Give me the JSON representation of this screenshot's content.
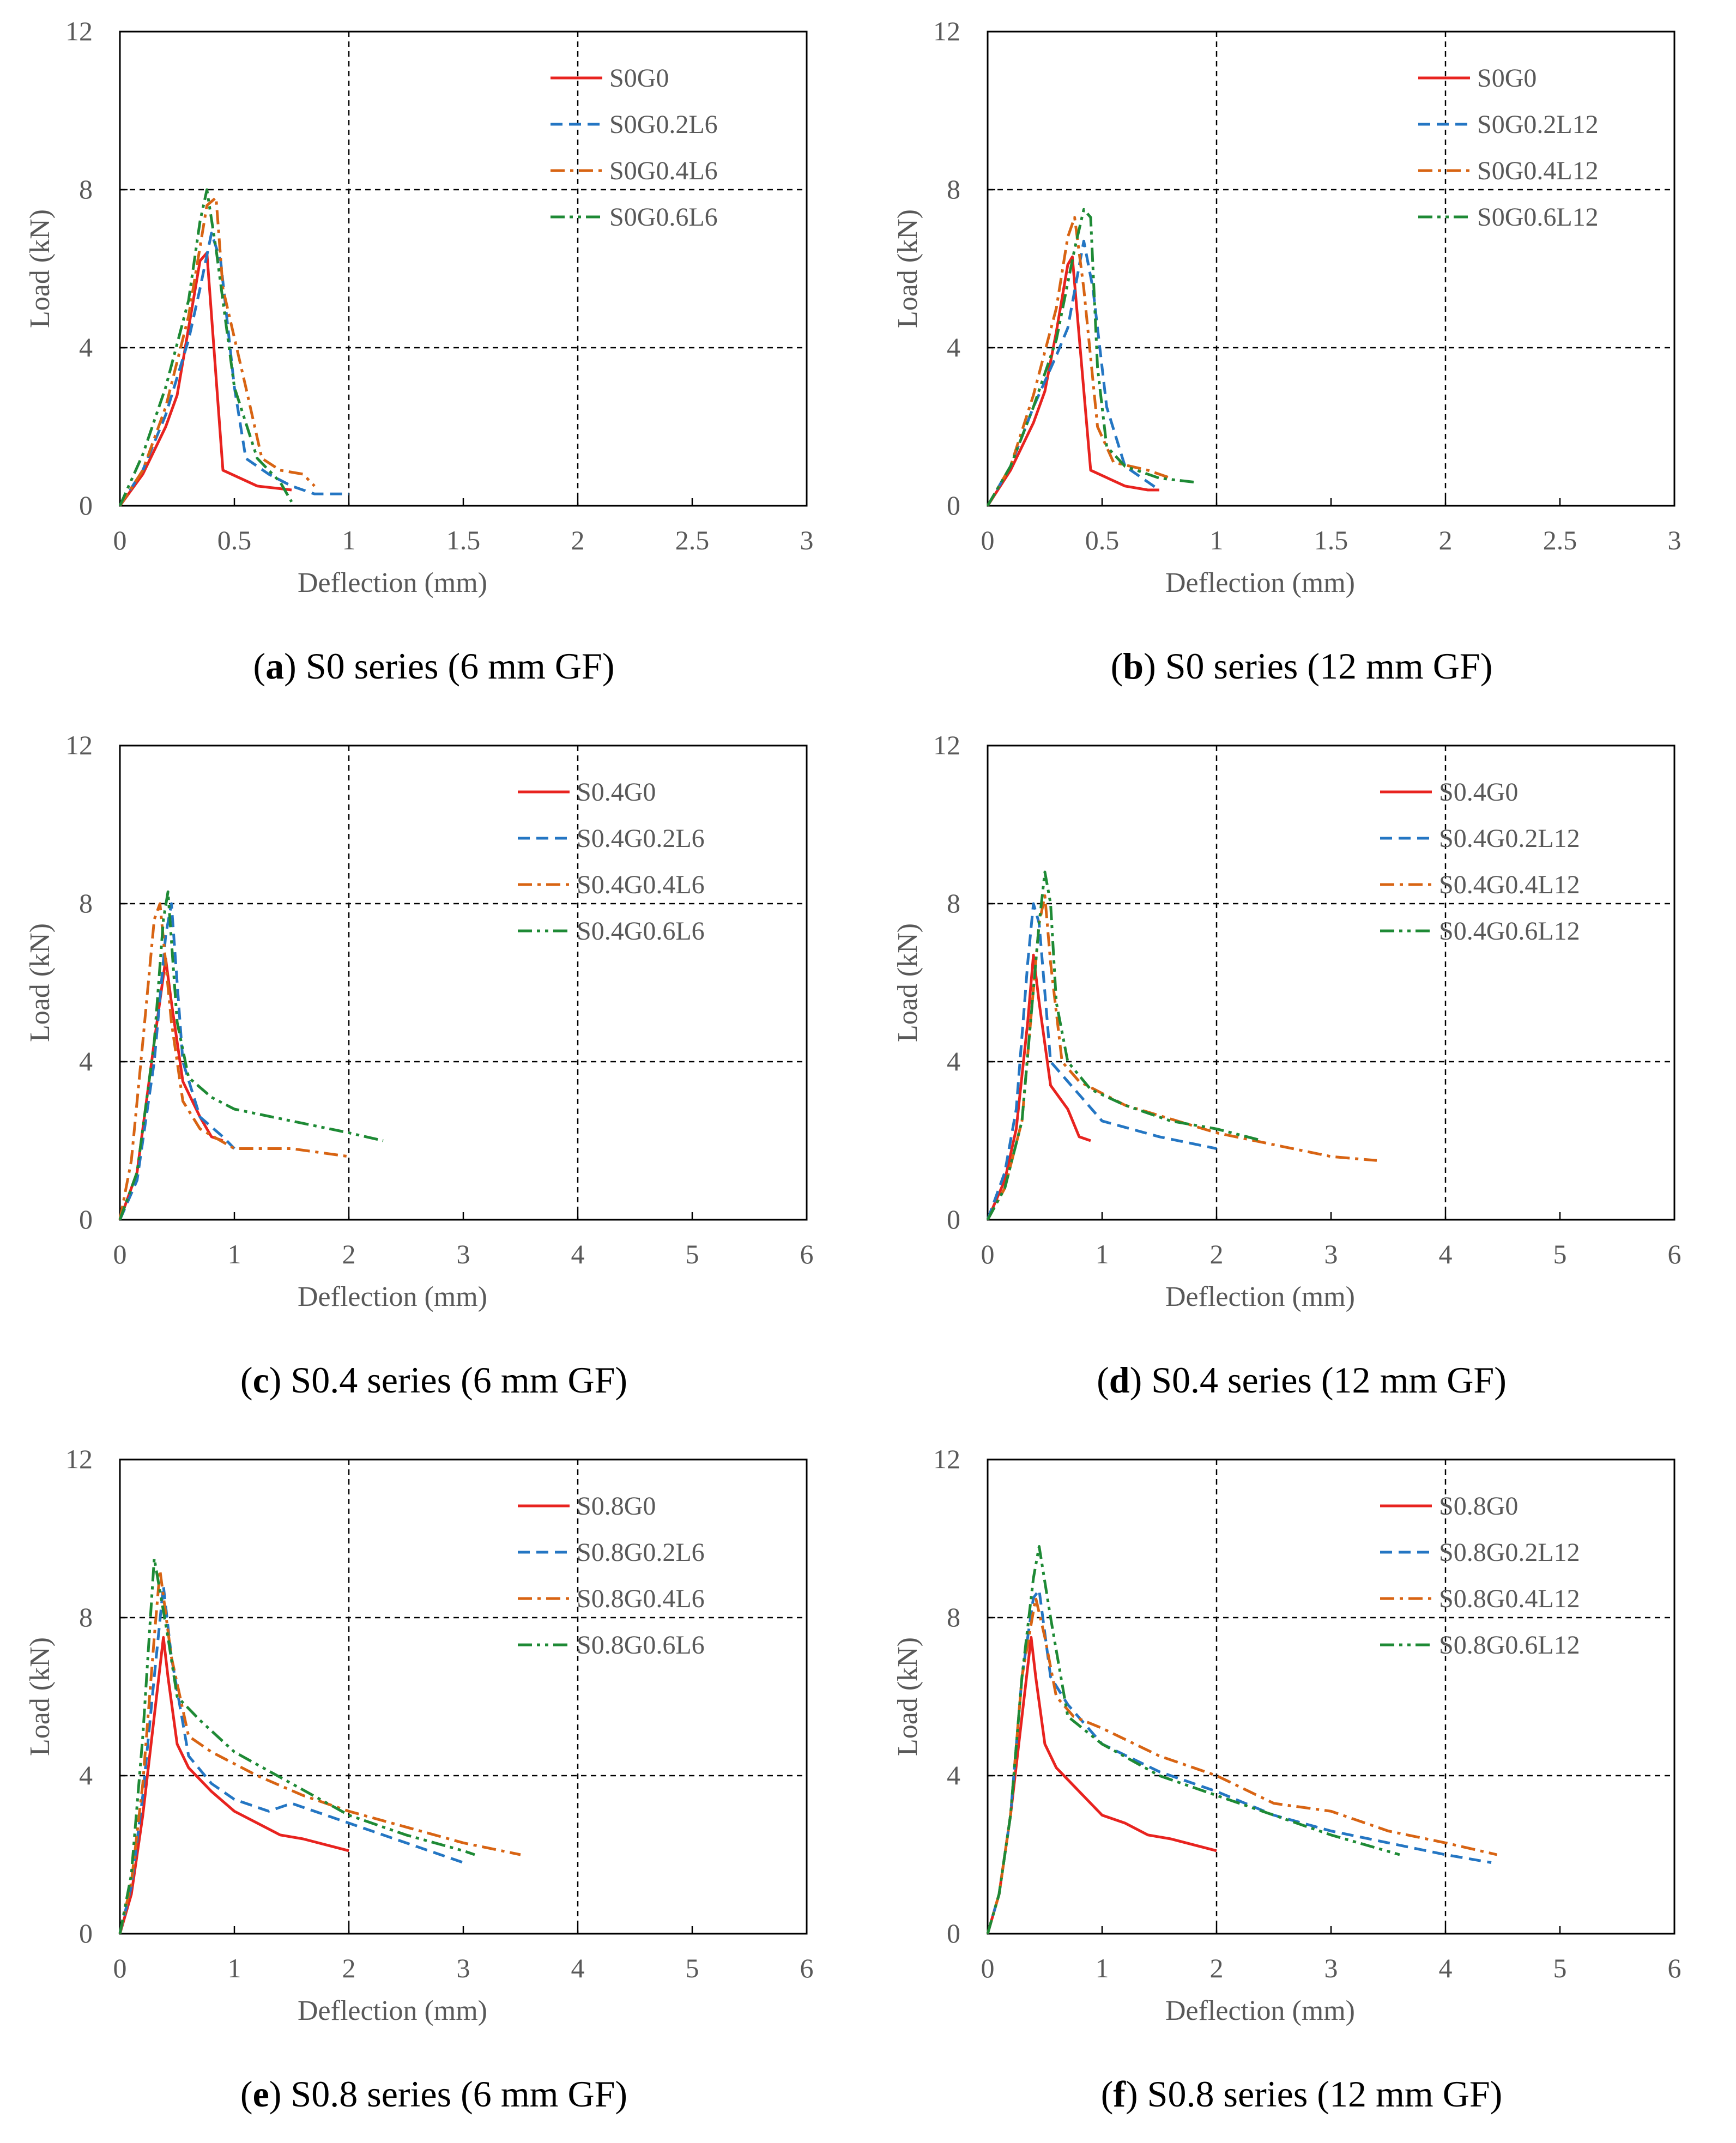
{
  "colors": {
    "red": "#e8231f",
    "blue": "#2476c3",
    "orange": "#d86413",
    "green": "#1e8a35",
    "grid": "#000000",
    "text": "#595959"
  },
  "chart_data": [
    {
      "type": "line",
      "letter": "a",
      "caption": " S0 series (6 mm GF)",
      "xlabel": "Deflection (mm)",
      "ylabel": "Load (kN)",
      "xlim": [
        0,
        3
      ],
      "ylim": [
        0,
        12
      ],
      "xticks": [
        "0",
        "0.5",
        "1",
        "1.5",
        "2",
        "2.5",
        "3"
      ],
      "yticks": [
        "0",
        "4",
        "8",
        "12"
      ],
      "legend_position": "top-right",
      "series": [
        {
          "name": "S0G0",
          "color": "red",
          "dash": "solid",
          "x": [
            0,
            0.1,
            0.2,
            0.25,
            0.3,
            0.35,
            0.38,
            0.45,
            0.6,
            0.75
          ],
          "y": [
            0,
            0.8,
            2.0,
            2.8,
            4.5,
            6.2,
            6.4,
            0.9,
            0.5,
            0.4
          ]
        },
        {
          "name": "S0G0.2L6",
          "color": "blue",
          "dash": "dash",
          "x": [
            0,
            0.1,
            0.2,
            0.3,
            0.35,
            0.4,
            0.44,
            0.5,
            0.55,
            0.65,
            0.75,
            0.85,
            1.0
          ],
          "y": [
            0,
            0.9,
            2.3,
            4.2,
            5.5,
            6.9,
            6.2,
            3.0,
            1.2,
            0.8,
            0.5,
            0.3,
            0.3
          ]
        },
        {
          "name": "S0G0.4L6",
          "color": "orange",
          "dash": "dashdot",
          "x": [
            0,
            0.1,
            0.2,
            0.3,
            0.38,
            0.42,
            0.45,
            0.55,
            0.62,
            0.7,
            0.8,
            0.85
          ],
          "y": [
            0,
            0.9,
            2.5,
            4.8,
            7.6,
            7.8,
            5.5,
            3.0,
            1.2,
            0.9,
            0.8,
            0.5
          ]
        },
        {
          "name": "S0G0.6L6",
          "color": "green",
          "dash": "dashdotdot",
          "x": [
            0,
            0.1,
            0.2,
            0.3,
            0.35,
            0.38,
            0.42,
            0.5,
            0.6,
            0.7,
            0.75
          ],
          "y": [
            0,
            1.3,
            3.0,
            5.2,
            7.2,
            8.0,
            6.5,
            3.0,
            1.2,
            0.6,
            0.1
          ]
        }
      ]
    },
    {
      "type": "line",
      "letter": "b",
      "caption": " S0 series (12 mm GF)",
      "xlabel": "Deflection (mm)",
      "ylabel": "Load (kN)",
      "xlim": [
        0,
        3
      ],
      "ylim": [
        0,
        12
      ],
      "xticks": [
        "0",
        "0.5",
        "1",
        "1.5",
        "2",
        "2.5",
        "3"
      ],
      "yticks": [
        "0",
        "4",
        "8",
        "12"
      ],
      "legend_position": "top-right",
      "series": [
        {
          "name": "S0G0",
          "color": "red",
          "dash": "solid",
          "x": [
            0,
            0.1,
            0.2,
            0.25,
            0.3,
            0.35,
            0.37,
            0.45,
            0.6,
            0.7,
            0.75
          ],
          "y": [
            0,
            0.9,
            2.1,
            2.9,
            4.4,
            6.1,
            6.3,
            0.9,
            0.5,
            0.4,
            0.4
          ]
        },
        {
          "name": "S0G0.2L12",
          "color": "blue",
          "dash": "dash",
          "x": [
            0,
            0.1,
            0.2,
            0.3,
            0.35,
            0.42,
            0.46,
            0.52,
            0.6,
            0.7,
            0.75
          ],
          "y": [
            0,
            1.0,
            2.5,
            3.8,
            4.5,
            6.7,
            5.5,
            2.5,
            1.0,
            0.6,
            0.4
          ]
        },
        {
          "name": "S0G0.4L12",
          "color": "orange",
          "dash": "dashdot",
          "x": [
            0,
            0.1,
            0.2,
            0.3,
            0.35,
            0.38,
            0.42,
            0.48,
            0.55,
            0.7,
            0.8
          ],
          "y": [
            0,
            1.0,
            2.8,
            5.0,
            6.8,
            7.3,
            5.5,
            2.0,
            1.1,
            0.9,
            0.7
          ]
        },
        {
          "name": "S0G0.6L12",
          "color": "green",
          "dash": "dashdotdot",
          "x": [
            0,
            0.1,
            0.2,
            0.3,
            0.38,
            0.42,
            0.45,
            0.48,
            0.52,
            0.6,
            0.75,
            0.9
          ],
          "y": [
            0,
            1.0,
            2.5,
            4.2,
            6.5,
            7.5,
            7.3,
            3.5,
            1.5,
            1.0,
            0.7,
            0.6
          ]
        }
      ]
    },
    {
      "type": "line",
      "letter": "c",
      "caption": " S0.4 series (6 mm GF)",
      "xlabel": "Deflection (mm)",
      "ylabel": "Load (kN)",
      "xlim": [
        0,
        6
      ],
      "ylim": [
        0,
        12
      ],
      "xticks": [
        "0",
        "1",
        "2",
        "3",
        "4",
        "5",
        "6"
      ],
      "yticks": [
        "0",
        "4",
        "8",
        "12"
      ],
      "legend_position": "top-right",
      "series": [
        {
          "name": "S0.4G0",
          "color": "red",
          "dash": "solid",
          "x": [
            0,
            0.15,
            0.3,
            0.4,
            0.45,
            0.55,
            0.7,
            0.8,
            0.9
          ],
          "y": [
            0,
            1.2,
            4.5,
            6.6,
            5.5,
            3.5,
            2.6,
            2.1,
            2.0
          ]
        },
        {
          "name": "S0.4G0.2L6",
          "color": "blue",
          "dash": "dash",
          "x": [
            0,
            0.15,
            0.3,
            0.4,
            0.45,
            0.55,
            0.7,
            0.9,
            1.0
          ],
          "y": [
            0,
            1.0,
            4.0,
            7.2,
            8.0,
            4.0,
            2.6,
            2.1,
            1.8
          ]
        },
        {
          "name": "S0.4G0.4L6",
          "color": "orange",
          "dash": "dashdot",
          "x": [
            0,
            0.1,
            0.2,
            0.3,
            0.35,
            0.45,
            0.55,
            0.7,
            1.0,
            1.5,
            2.0
          ],
          "y": [
            0,
            1.5,
            4.5,
            7.6,
            8.0,
            5.0,
            3.0,
            2.3,
            1.8,
            1.8,
            1.6
          ]
        },
        {
          "name": "S0.4G0.6L6",
          "color": "green",
          "dash": "dashdotdot",
          "x": [
            0,
            0.15,
            0.3,
            0.38,
            0.42,
            0.5,
            0.6,
            0.8,
            1.0,
            1.5,
            2.0,
            2.3
          ],
          "y": [
            0,
            1.2,
            4.5,
            7.6,
            8.3,
            5.0,
            3.6,
            3.1,
            2.8,
            2.5,
            2.2,
            2.0
          ]
        }
      ]
    },
    {
      "type": "line",
      "letter": "d",
      "caption": " S0.4 series (12 mm GF)",
      "xlabel": "Deflection (mm)",
      "ylabel": "Load (kN)",
      "xlim": [
        0,
        6
      ],
      "ylim": [
        0,
        12
      ],
      "xticks": [
        "0",
        "1",
        "2",
        "3",
        "4",
        "5",
        "6"
      ],
      "yticks": [
        "0",
        "4",
        "8",
        "12"
      ],
      "legend_position": "top-right",
      "series": [
        {
          "name": "S0.4G0",
          "color": "red",
          "dash": "solid",
          "x": [
            0,
            0.15,
            0.25,
            0.35,
            0.4,
            0.45,
            0.55,
            0.7,
            0.8,
            0.9
          ],
          "y": [
            0,
            1.0,
            2.3,
            5.0,
            6.7,
            5.5,
            3.4,
            2.8,
            2.1,
            2.0
          ]
        },
        {
          "name": "S0.4G0.2L12",
          "color": "blue",
          "dash": "dash",
          "x": [
            0,
            0.15,
            0.25,
            0.35,
            0.4,
            0.45,
            0.55,
            0.7,
            1.0,
            1.5,
            2.0
          ],
          "y": [
            0,
            1.2,
            2.8,
            6.5,
            8.0,
            7.5,
            4.0,
            3.5,
            2.5,
            2.1,
            1.8
          ]
        },
        {
          "name": "S0.4G0.4L12",
          "color": "orange",
          "dash": "dashdot",
          "x": [
            0,
            0.15,
            0.3,
            0.45,
            0.5,
            0.55,
            0.65,
            0.8,
            1.2,
            2.0,
            2.5,
            3.0,
            3.4
          ],
          "y": [
            0,
            0.8,
            2.5,
            7.5,
            8.2,
            6.5,
            4.0,
            3.5,
            2.9,
            2.2,
            1.9,
            1.6,
            1.5
          ]
        },
        {
          "name": "S0.4G0.6L12",
          "color": "green",
          "dash": "dashdotdot",
          "x": [
            0,
            0.15,
            0.3,
            0.45,
            0.5,
            0.55,
            0.6,
            0.7,
            0.9,
            1.2,
            1.6,
            2.0,
            2.4
          ],
          "y": [
            0,
            0.8,
            2.5,
            7.5,
            8.8,
            8.0,
            5.5,
            4.0,
            3.3,
            2.9,
            2.5,
            2.3,
            2.0
          ]
        }
      ]
    },
    {
      "type": "line",
      "letter": "e",
      "caption": " S0.8 series (6 mm GF)",
      "xlabel": "Deflection (mm)",
      "ylabel": "Load (kN)",
      "xlim": [
        0,
        6
      ],
      "ylim": [
        0,
        12
      ],
      "xticks": [
        "0",
        "1",
        "2",
        "3",
        "4",
        "5",
        "6"
      ],
      "yticks": [
        "0",
        "4",
        "8",
        "12"
      ],
      "legend_position": "top-right",
      "series": [
        {
          "name": "S0.8G0",
          "color": "red",
          "dash": "solid",
          "x": [
            0,
            0.1,
            0.2,
            0.3,
            0.38,
            0.42,
            0.5,
            0.6,
            0.8,
            1.0,
            1.2,
            1.4,
            1.6,
            2.0
          ],
          "y": [
            0,
            1.0,
            3.0,
            5.5,
            7.5,
            6.5,
            4.8,
            4.2,
            3.6,
            3.1,
            2.8,
            2.5,
            2.4,
            2.1
          ]
        },
        {
          "name": "S0.8G0.2L6",
          "color": "blue",
          "dash": "dash",
          "x": [
            0,
            0.1,
            0.2,
            0.3,
            0.38,
            0.45,
            0.6,
            0.8,
            1.0,
            1.3,
            1.5,
            2.0,
            2.5,
            3.0
          ],
          "y": [
            0,
            1.2,
            3.5,
            6.5,
            8.8,
            7.0,
            4.5,
            3.8,
            3.4,
            3.1,
            3.3,
            2.8,
            2.3,
            1.8
          ]
        },
        {
          "name": "S0.8G0.4L6",
          "color": "orange",
          "dash": "dashdot",
          "x": [
            0,
            0.1,
            0.2,
            0.3,
            0.35,
            0.45,
            0.6,
            0.8,
            1.2,
            1.6,
            2.0,
            2.5,
            3.0,
            3.5
          ],
          "y": [
            0,
            1.3,
            3.8,
            7.5,
            9.2,
            7.0,
            5.0,
            4.6,
            4.0,
            3.5,
            3.1,
            2.7,
            2.3,
            2.0
          ]
        },
        {
          "name": "S0.8G0.6L6",
          "color": "green",
          "dash": "dashdotdot",
          "x": [
            0,
            0.1,
            0.2,
            0.3,
            0.42,
            0.5,
            0.7,
            1.0,
            1.5,
            2.0,
            2.5,
            3.0,
            3.1
          ],
          "y": [
            0,
            1.5,
            5.0,
            9.5,
            7.5,
            6.0,
            5.4,
            4.6,
            3.8,
            3.0,
            2.5,
            2.1,
            2.0
          ]
        }
      ]
    },
    {
      "type": "line",
      "letter": "f",
      "caption": " S0.8 series (12 mm GF)",
      "xlabel": "Deflection (mm)",
      "ylabel": "Load (kN)",
      "xlim": [
        0,
        6
      ],
      "ylim": [
        0,
        12
      ],
      "xticks": [
        "0",
        "1",
        "2",
        "3",
        "4",
        "5",
        "6"
      ],
      "yticks": [
        "0",
        "4",
        "8",
        "12"
      ],
      "legend_position": "top-right",
      "series": [
        {
          "name": "S0.8G0",
          "color": "red",
          "dash": "solid",
          "x": [
            0,
            0.1,
            0.2,
            0.3,
            0.38,
            0.42,
            0.5,
            0.6,
            0.8,
            1.0,
            1.2,
            1.4,
            1.6,
            2.0
          ],
          "y": [
            0,
            1.0,
            3.0,
            5.5,
            7.5,
            6.5,
            4.8,
            4.2,
            3.6,
            3.0,
            2.8,
            2.5,
            2.4,
            2.1
          ]
        },
        {
          "name": "S0.8G0.2L12",
          "color": "blue",
          "dash": "dash",
          "x": [
            0,
            0.1,
            0.2,
            0.3,
            0.4,
            0.45,
            0.55,
            0.7,
            1.0,
            1.5,
            2.0,
            2.5,
            3.0,
            3.5,
            4.0,
            4.4
          ],
          "y": [
            0,
            1.0,
            3.0,
            6.5,
            8.5,
            8.7,
            6.5,
            5.8,
            4.8,
            4.1,
            3.6,
            3.0,
            2.6,
            2.3,
            2.0,
            1.8
          ]
        },
        {
          "name": "S0.8G0.4L12",
          "color": "orange",
          "dash": "dashdot",
          "x": [
            0,
            0.1,
            0.2,
            0.3,
            0.42,
            0.5,
            0.6,
            0.75,
            1.0,
            1.5,
            2.0,
            2.5,
            3.0,
            3.5,
            4.0,
            4.45
          ],
          "y": [
            0,
            1.0,
            3.0,
            6.5,
            8.5,
            7.5,
            6.0,
            5.5,
            5.2,
            4.5,
            4.0,
            3.3,
            3.1,
            2.6,
            2.3,
            2.0
          ]
        },
        {
          "name": "S0.8G0.6L12",
          "color": "green",
          "dash": "dashdotdot",
          "x": [
            0,
            0.1,
            0.2,
            0.3,
            0.4,
            0.45,
            0.55,
            0.7,
            1.0,
            1.5,
            2.0,
            2.5,
            3.0,
            3.6
          ],
          "y": [
            0,
            1.0,
            3.0,
            6.5,
            9.0,
            9.8,
            8.0,
            5.5,
            4.8,
            4.0,
            3.5,
            3.0,
            2.5,
            2.0
          ]
        }
      ]
    }
  ]
}
